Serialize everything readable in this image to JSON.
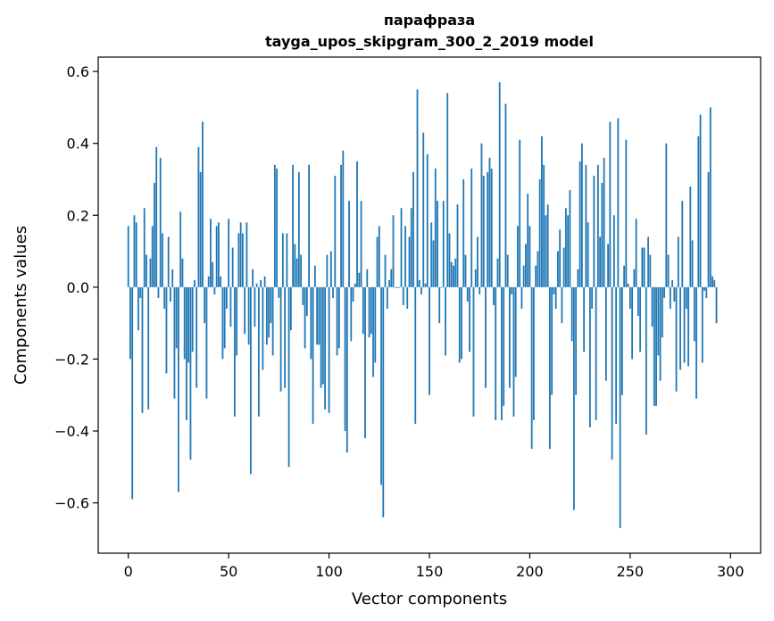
{
  "chart_data": {
    "type": "bar",
    "title": "парафраза",
    "subtitle": "tayga_upos_skipgram_300_2_2019 model",
    "xlabel": "Vector components",
    "ylabel": "Components values",
    "xlim": [
      -15,
      315
    ],
    "ylim": [
      -0.74,
      0.64
    ],
    "xticks": [
      0,
      50,
      100,
      150,
      200,
      250,
      300
    ],
    "xtick_labels": [
      "0",
      "50",
      "100",
      "150",
      "200",
      "250",
      "300"
    ],
    "yticks": [
      -0.6,
      -0.4,
      -0.2,
      0.0,
      0.2,
      0.4,
      0.6
    ],
    "ytick_labels": [
      "−0.6",
      "−0.4",
      "−0.2",
      "0.0",
      "0.2",
      "0.4",
      "0.6"
    ],
    "grid": false,
    "bar_color": "#1f77b4",
    "values": [
      0.17,
      -0.2,
      -0.59,
      0.2,
      0.18,
      -0.12,
      -0.03,
      -0.35,
      0.22,
      0.09,
      -0.34,
      0.08,
      0.17,
      0.29,
      0.39,
      -0.03,
      0.36,
      0.15,
      -0.06,
      -0.24,
      0.14,
      -0.04,
      0.05,
      -0.31,
      -0.17,
      -0.57,
      0.21,
      0.08,
      -0.2,
      -0.37,
      -0.21,
      -0.48,
      -0.18,
      0.02,
      -0.28,
      0.39,
      0.32,
      0.46,
      -0.1,
      -0.31,
      0.03,
      0.19,
      0.07,
      -0.02,
      0.17,
      0.18,
      0.03,
      -0.2,
      -0.17,
      -0.06,
      0.19,
      -0.11,
      0.11,
      -0.36,
      -0.19,
      0.15,
      0.18,
      0.15,
      -0.13,
      0.18,
      -0.16,
      -0.52,
      0.05,
      -0.11,
      0.01,
      -0.36,
      0.02,
      -0.23,
      0.03,
      -0.16,
      -0.14,
      -0.1,
      -0.19,
      0.34,
      0.33,
      -0.03,
      -0.29,
      0.15,
      -0.28,
      0.15,
      -0.5,
      -0.12,
      0.34,
      0.12,
      0.08,
      0.32,
      0.09,
      -0.05,
      -0.17,
      -0.08,
      0.34,
      -0.2,
      -0.38,
      0.06,
      -0.16,
      -0.16,
      -0.28,
      -0.27,
      -0.34,
      0.09,
      -0.35,
      0.1,
      -0.03,
      0.31,
      -0.19,
      -0.17,
      0.34,
      0.38,
      -0.4,
      -0.46,
      0.24,
      -0.15,
      -0.04,
      0.01,
      0.35,
      0.04,
      0.24,
      -0.13,
      -0.42,
      0.05,
      -0.14,
      -0.13,
      -0.25,
      -0.21,
      0.14,
      0.17,
      -0.55,
      -0.64,
      0.09,
      -0.06,
      0.02,
      0.05,
      0.2,
      0.0,
      0.0,
      0.0,
      0.22,
      -0.05,
      0.17,
      -0.06,
      0.14,
      0.22,
      0.32,
      -0.38,
      0.55,
      0.02,
      -0.02,
      0.43,
      0.01,
      0.37,
      -0.3,
      0.18,
      0.13,
      0.33,
      0.24,
      -0.1,
      0.0,
      0.24,
      -0.19,
      0.54,
      0.15,
      0.07,
      0.06,
      0.08,
      0.23,
      -0.21,
      -0.2,
      0.3,
      0.09,
      -0.04,
      -0.18,
      0.33,
      -0.36,
      0.05,
      0.14,
      -0.02,
      0.4,
      0.31,
      -0.28,
      0.32,
      0.36,
      0.33,
      -0.05,
      -0.37,
      0.08,
      0.57,
      -0.37,
      -0.33,
      0.51,
      0.09,
      -0.28,
      -0.02,
      -0.36,
      -0.25,
      0.17,
      0.41,
      -0.06,
      0.06,
      0.12,
      0.26,
      0.17,
      -0.45,
      -0.37,
      0.06,
      0.1,
      0.3,
      0.42,
      0.34,
      0.2,
      0.23,
      -0.45,
      -0.3,
      -0.02,
      -0.06,
      0.1,
      0.16,
      -0.1,
      0.11,
      0.22,
      0.2,
      0.27,
      -0.15,
      -0.62,
      -0.3,
      0.05,
      0.35,
      0.4,
      -0.18,
      0.34,
      0.18,
      -0.39,
      -0.06,
      0.31,
      -0.37,
      0.34,
      0.14,
      0.29,
      0.36,
      -0.26,
      0.12,
      0.46,
      -0.48,
      0.2,
      -0.38,
      0.47,
      -0.67,
      -0.3,
      0.06,
      0.41,
      0.01,
      -0.06,
      -0.2,
      0.05,
      0.19,
      -0.08,
      -0.18,
      0.11,
      0.11,
      -0.41,
      0.14,
      0.09,
      -0.11,
      -0.33,
      -0.33,
      -0.19,
      -0.26,
      -0.14,
      -0.03,
      0.4,
      0.09,
      -0.06,
      0.02,
      -0.04,
      -0.29,
      0.14,
      -0.23,
      0.24,
      -0.21,
      -0.06,
      -0.22,
      0.28,
      0.13,
      -0.15,
      -0.31,
      0.42,
      0.48,
      -0.21,
      -0.01,
      -0.03,
      0.32,
      0.5,
      0.03,
      0.02,
      -0.1
    ]
  }
}
